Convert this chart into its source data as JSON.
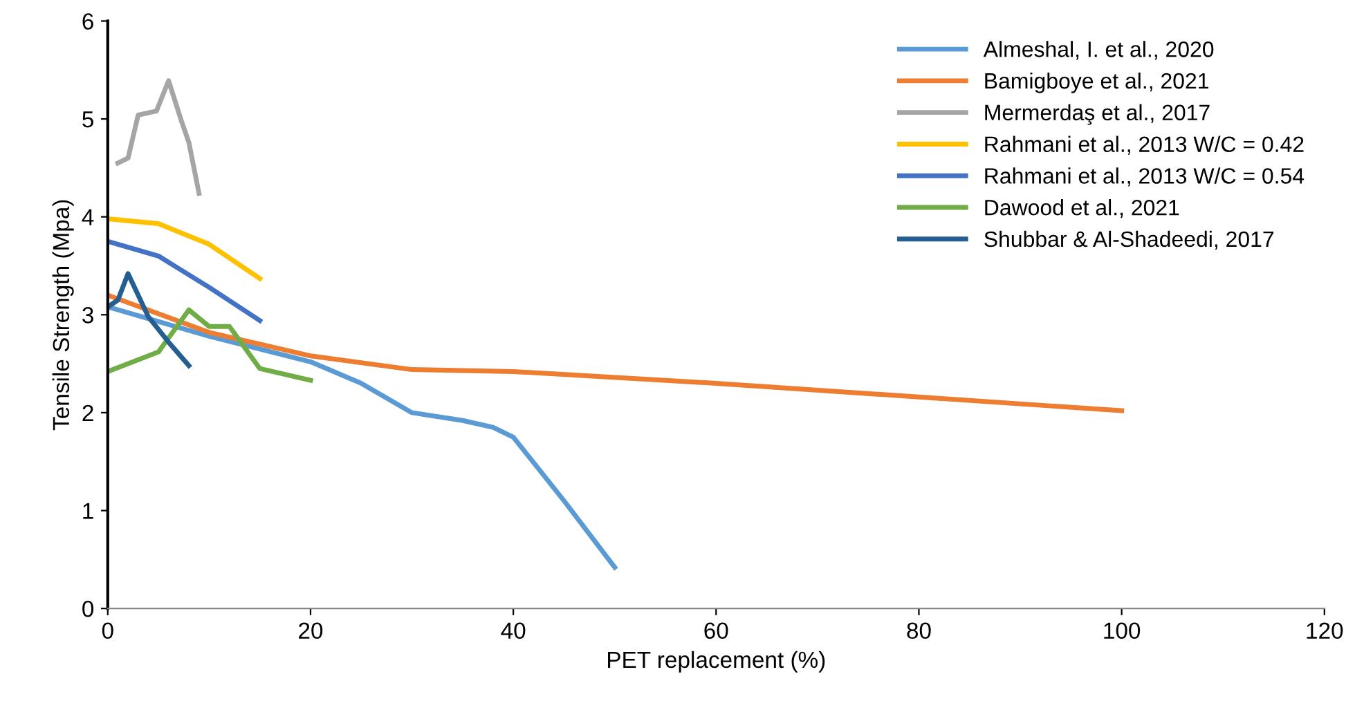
{
  "chart_data": {
    "type": "line",
    "xlabel": "PET replacement (%)",
    "ylabel": "Tensile Strength (Mpa)",
    "xlim": [
      0,
      120
    ],
    "xticks": [
      0,
      20,
      40,
      60,
      80,
      100,
      120
    ],
    "ylim": [
      0,
      6
    ],
    "yticks": [
      0,
      1,
      2,
      3,
      4,
      5,
      6
    ],
    "grid": false,
    "legend": "top right",
    "marker": "none",
    "line_style": "solid",
    "series": [
      {
        "name": "Almeshal, I. et al., 2020",
        "color": "#5b9bd5",
        "x": [
          0,
          5,
          10,
          15,
          20,
          25,
          30,
          35,
          38,
          40,
          45,
          50
        ],
        "values": [
          3.08,
          2.93,
          2.78,
          2.65,
          2.52,
          2.3,
          2.0,
          1.92,
          1.85,
          1.75,
          1.1,
          0.42
        ]
      },
      {
        "name": "Bamigboye et al., 2021",
        "color": "#ed7d31",
        "x": [
          0,
          10,
          20,
          30,
          40,
          60,
          80,
          100
        ],
        "values": [
          3.2,
          2.82,
          2.58,
          2.44,
          2.42,
          2.3,
          2.16,
          2.02
        ]
      },
      {
        "name": "Mermerdaş et al., 2017",
        "color": "#a5a5a5",
        "x": [
          1,
          2,
          3,
          4.8,
          6,
          7.2,
          8,
          9
        ],
        "values": [
          4.55,
          4.6,
          5.04,
          5.08,
          5.39,
          5.0,
          4.76,
          4.24
        ]
      },
      {
        "name": "Rahmani et al., 2013 W/C = 0.42",
        "color": "#ffc000",
        "x": [
          0,
          5,
          10,
          15
        ],
        "values": [
          3.98,
          3.93,
          3.72,
          3.37
        ]
      },
      {
        "name": "Rahmani et al., 2013 W/C = 0.54",
        "color": "#4472c4",
        "x": [
          0,
          5,
          10,
          15
        ],
        "values": [
          3.75,
          3.6,
          3.28,
          2.94
        ]
      },
      {
        "name": "Dawood et al., 2021",
        "color": "#70ad47",
        "x": [
          0,
          5,
          8,
          10,
          12,
          15,
          20
        ],
        "values": [
          2.42,
          2.62,
          3.05,
          2.88,
          2.88,
          2.45,
          2.33
        ]
      },
      {
        "name": "Shubbar & Al-Shadeedi, 2017",
        "color": "#255e91",
        "x": [
          0,
          1,
          2,
          4,
          6,
          8
        ],
        "values": [
          3.08,
          3.15,
          3.42,
          2.98,
          2.72,
          2.48
        ]
      }
    ]
  }
}
